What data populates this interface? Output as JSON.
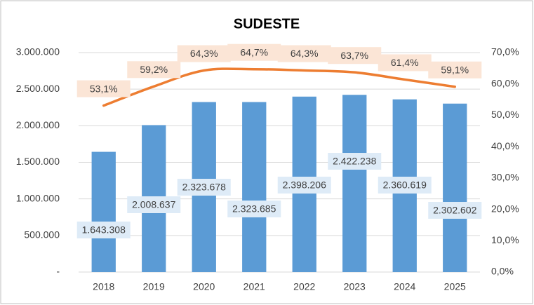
{
  "chart_data": {
    "type": "bar-line",
    "title": "SUDESTE",
    "categories": [
      "2018",
      "2019",
      "2020",
      "2021",
      "2022",
      "2023",
      "2024",
      "2025"
    ],
    "series": [
      {
        "type": "bar",
        "color": "#5b9bd5",
        "values": [
          1643308,
          2008637,
          2323678,
          2323685,
          2398206,
          2422238,
          2360619,
          2302602
        ],
        "value_labels": [
          "1.643.308",
          "2.008.637",
          "2.323.678",
          "2.323.685",
          "2.398.206",
          "2.422.238",
          "2.360.619",
          "2.302.602"
        ]
      },
      {
        "type": "line",
        "axis": "y2",
        "color": "#ed7d31",
        "values": [
          53.1,
          59.2,
          64.3,
          64.7,
          64.3,
          63.7,
          61.4,
          59.1
        ],
        "value_labels": [
          "53,1%",
          "59,2%",
          "64,3%",
          "64,7%",
          "64,3%",
          "63,7%",
          "61,4%",
          "59,1%"
        ]
      }
    ],
    "ylim": [
      0,
      3000000
    ],
    "yticks": [
      {
        "value": 0,
        "label": "-"
      },
      {
        "value": 500000,
        "label": "500.000"
      },
      {
        "value": 1000000,
        "label": "1.000.000"
      },
      {
        "value": 1500000,
        "label": "1.500.000"
      },
      {
        "value": 2000000,
        "label": "2.000.000"
      },
      {
        "value": 2500000,
        "label": "2.500.000"
      },
      {
        "value": 3000000,
        "label": "3.000.000"
      }
    ],
    "y2lim": [
      0,
      70
    ],
    "y2ticks": [
      {
        "value": 0,
        "label": "0,0%"
      },
      {
        "value": 10,
        "label": "10,0%"
      },
      {
        "value": 20,
        "label": "20,0%"
      },
      {
        "value": 30,
        "label": "30,0%"
      },
      {
        "value": 40,
        "label": "40,0%"
      },
      {
        "value": 50,
        "label": "50,0%"
      },
      {
        "value": 60,
        "label": "60,0%"
      },
      {
        "value": 70,
        "label": "70,0%"
      }
    ],
    "grid": true
  }
}
